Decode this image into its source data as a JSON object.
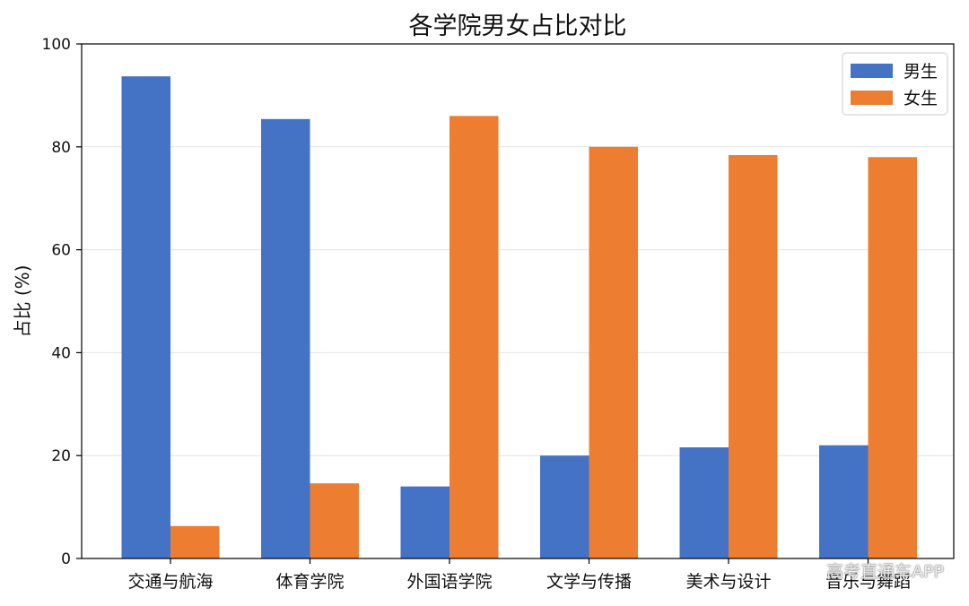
{
  "chart_data": {
    "type": "bar",
    "title": "各学院男女占比对比",
    "xlabel": "",
    "ylabel": "占比 (%)",
    "ylim": [
      0,
      100
    ],
    "yticks": [
      0,
      20,
      40,
      60,
      80,
      100
    ],
    "grid": "horizontal",
    "legend_position": "top-right",
    "categories": [
      "交通与航海",
      "体育学院",
      "外国语学院",
      "文学与传播",
      "美术与设计",
      "音乐与舞蹈"
    ],
    "series": [
      {
        "name": "男生",
        "color": "#4472C4",
        "values": [
          93.7,
          85.4,
          14.0,
          20.0,
          21.6,
          22.0
        ]
      },
      {
        "name": "女生",
        "color": "#ED7D31",
        "values": [
          6.3,
          14.6,
          86.0,
          80.0,
          78.4,
          78.0
        ]
      }
    ]
  },
  "watermark": "高考直通车APP"
}
